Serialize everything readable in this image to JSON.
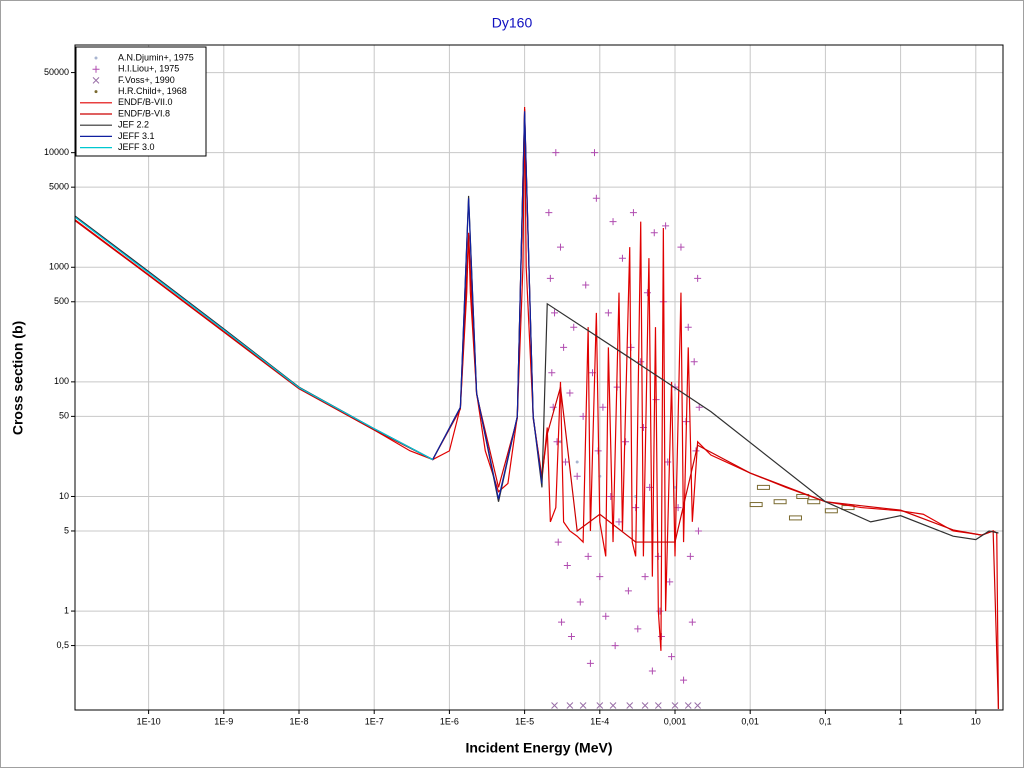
{
  "chart_data": {
    "type": "scatter",
    "title": "Dy160",
    "xlabel": "Incident Energy (MeV)",
    "ylabel": "Cross section (b)",
    "xscale": "log",
    "yscale": "log",
    "grid": true,
    "legend": "upper left",
    "xlim": [
      1.05e-11,
      23
    ],
    "ylim": [
      0.137,
      87000
    ],
    "xticks": [
      {
        "value": 1e-10,
        "label": "1E-10"
      },
      {
        "value": 1e-09,
        "label": "1E-9"
      },
      {
        "value": 1e-08,
        "label": "1E-8"
      },
      {
        "value": 1e-07,
        "label": "1E-7"
      },
      {
        "value": 1e-06,
        "label": "1E-6"
      },
      {
        "value": 1e-05,
        "label": "1E-5"
      },
      {
        "value": 0.0001,
        "label": "1E-4"
      },
      {
        "value": 0.001,
        "label": "0,001"
      },
      {
        "value": 0.01,
        "label": "0,01"
      },
      {
        "value": 0.1,
        "label": "0,1"
      },
      1,
      10
    ],
    "yticks": [
      {
        "value": 0.5,
        "label": "0,5"
      },
      1,
      5,
      10,
      50,
      100,
      500,
      1000,
      5000,
      10000,
      50000
    ],
    "series": [
      {
        "name": "A.N.Djumin+, 1975",
        "style": "dot",
        "color": "#a8b4d0",
        "x": [
          3e-05,
          5e-05,
          0.0001,
          0.0003,
          0.001
        ],
        "values": [
          30,
          20,
          15,
          10,
          12
        ]
      },
      {
        "name": "H.I.Liou+, 1975",
        "style": "plus",
        "color": "#b04cb0",
        "x": [
          2.1e-05,
          2.2e-05,
          2.3e-05,
          2.4e-05,
          2.5e-05,
          2.6e-05,
          2.7e-05,
          2.8e-05,
          3e-05,
          3.1e-05,
          3.3e-05,
          3.5e-05,
          3.7e-05,
          4e-05,
          4.2e-05,
          4.5e-05,
          5e-05,
          5.5e-05,
          6e-05,
          6.5e-05,
          7e-05,
          7.5e-05,
          8e-05,
          8.5e-05,
          9e-05,
          9.5e-05,
          0.0001,
          0.00011,
          0.00012,
          0.00013,
          0.00014,
          0.00015,
          0.00016,
          0.00017,
          0.00018,
          0.0002,
          0.00022,
          0.00024,
          0.00026,
          0.00028,
          0.0003,
          0.00032,
          0.00035,
          0.00038,
          0.0004,
          0.00043,
          0.00046,
          0.0005,
          0.00053,
          0.00056,
          0.0006,
          0.00063,
          0.00066,
          0.0007,
          0.00075,
          0.0008,
          0.00085,
          0.0009,
          0.001,
          0.0011,
          0.0012,
          0.0013,
          0.0014,
          0.0015,
          0.0016,
          0.0017,
          0.0018,
          0.0019,
          0.002,
          0.00205,
          0.0021
        ],
        "values": [
          3000,
          800,
          120,
          60,
          400,
          10000,
          30,
          4,
          1500,
          0.8,
          200,
          20,
          2.5,
          80,
          0.6,
          300,
          15,
          1.2,
          50,
          700,
          3,
          0.35,
          120,
          10000,
          4000,
          25,
          2,
          60,
          0.9,
          400,
          10,
          2500,
          0.5,
          90,
          6,
          1200,
          30,
          1.5,
          200,
          3000,
          8,
          0.7,
          150,
          40,
          2,
          600,
          12,
          0.3,
          2000,
          70,
          3,
          1,
          0.6,
          500,
          2300,
          20,
          1.8,
          0.4,
          90,
          8,
          1500,
          0.25,
          45,
          300,
          3,
          0.8,
          150,
          25,
          800,
          5,
          60
        ]
      },
      {
        "name": "F.Voss+, 1990",
        "style": "cross",
        "color": "#9a70a8",
        "x": [
          2.5e-05,
          4e-05,
          6e-05,
          0.0001,
          0.00015,
          0.00025,
          0.0004,
          0.0006,
          0.001,
          0.0015,
          0.002
        ],
        "values": [
          0.15,
          0.15,
          0.15,
          0.15,
          0.15,
          0.15,
          0.15,
          0.15,
          0.15,
          0.15,
          0.15
        ]
      },
      {
        "name": "H.R.Child+, 1968",
        "style": "square",
        "color": "#7a6a30",
        "x": [
          0.012,
          0.015,
          0.025,
          0.04,
          0.05,
          0.07,
          0.12,
          0.2
        ],
        "values": [
          8.5,
          12,
          9,
          6.5,
          10,
          9,
          7.5,
          8
        ]
      },
      {
        "name": "ENDF/B-VII.0",
        "style": "line",
        "color": "#e00000",
        "x": [
          1.05e-11,
          1e-10,
          1e-09,
          1e-08,
          1e-07,
          3e-07,
          6e-07,
          1e-06,
          1.4e-06,
          1.7e-06,
          1.8e-06,
          1.9e-06,
          2.3e-06,
          3e-06,
          4.5e-06,
          6e-06,
          8e-06,
          9.5e-06,
          1e-05,
          1.05e-05,
          1.3e-05,
          1.7e-05,
          2e-05,
          2.2e-05,
          2.6e-05,
          3e-05,
          3.3e-05,
          4e-05,
          5e-05,
          6e-05,
          7e-05,
          7.5e-05,
          9e-05,
          0.0001,
          0.00012,
          0.00013,
          0.00015,
          0.00018,
          0.0002,
          0.00025,
          0.00027,
          0.0003,
          0.00035,
          0.00038,
          0.00045,
          0.0005,
          0.00055,
          0.0006,
          0.00065,
          0.0007,
          0.00075,
          0.0009,
          0.001,
          0.0012,
          0.0013,
          0.0015,
          0.0017,
          0.002,
          0.003,
          0.01,
          0.03,
          0.1,
          0.3,
          1,
          2,
          5,
          8,
          12,
          17,
          19,
          20
        ],
        "values": [
          2600,
          860,
          275,
          88,
          38,
          25,
          21,
          25,
          60,
          600,
          2000,
          600,
          80,
          25,
          11,
          13,
          50,
          1000,
          25000,
          1000,
          50,
          14,
          40,
          6,
          8,
          100,
          6,
          5,
          4.5,
          4,
          300,
          5,
          400,
          6,
          3,
          200,
          4,
          600,
          5,
          1500,
          4,
          3,
          2500,
          3,
          1200,
          2,
          300,
          1,
          0.45,
          2200,
          1,
          100,
          3,
          600,
          4,
          200,
          6,
          30,
          23,
          16,
          12,
          9,
          8,
          7.5,
          7,
          5,
          4.8,
          4.6,
          5,
          4.8,
          0.14
        ]
      },
      {
        "name": "ENDF/B-VI.8",
        "style": "line",
        "color": "#cc0000",
        "x": [
          1.05e-11,
          1e-10,
          1e-09,
          1e-08,
          1e-07,
          6e-07,
          1.4e-06,
          1.8e-06,
          2.3e-06,
          4.5e-06,
          8e-06,
          1e-05,
          1.3e-05,
          1.7e-05,
          2e-05,
          3e-05,
          5e-05,
          0.0001,
          0.0003,
          0.001,
          0.002,
          0.01,
          0.1,
          1,
          5,
          12,
          17,
          20
        ],
        "values": [
          2550,
          850,
          272,
          87,
          38,
          21,
          58,
          1900,
          78,
          12,
          48,
          24000,
          48,
          15,
          35,
          90,
          5,
          7,
          4,
          4,
          28,
          16,
          9,
          7.6,
          5.1,
          4.6,
          5,
          0.14
        ]
      },
      {
        "name": "JEF 2.2",
        "style": "line",
        "color": "#303030",
        "x": [
          1.05e-11,
          1e-10,
          1e-09,
          1e-08,
          1e-07,
          6e-07,
          1.4e-06,
          1.8e-06,
          2.3e-06,
          4.5e-06,
          8e-06,
          1e-05,
          1.3e-05,
          1.7e-05,
          2e-05,
          0.0003,
          0.003,
          0.1,
          0.4,
          1,
          5,
          10,
          15,
          20
        ],
        "values": [
          2800,
          920,
          290,
          90,
          39,
          21,
          60,
          4200,
          80,
          9,
          50,
          22000,
          50,
          12,
          480,
          150,
          55,
          9,
          6,
          6.8,
          4.5,
          4.2,
          5,
          4.8
        ]
      },
      {
        "name": "JEFF 3.1",
        "style": "line",
        "color": "#1020a0",
        "x": [
          1.05e-11,
          1e-10,
          1e-09,
          1e-08,
          1e-07,
          6e-07,
          1.4e-06,
          1.8e-06,
          2.3e-06,
          4.5e-06,
          8e-06,
          1e-05,
          1.3e-05,
          1.7e-05
        ],
        "values": [
          2750,
          900,
          285,
          89,
          39,
          21,
          60,
          4000,
          80,
          9.5,
          50,
          23000,
          50,
          13
        ]
      },
      {
        "name": "JEFF 3.0",
        "style": "line",
        "color": "#00c8d0",
        "x": [
          1.05e-11,
          1e-10,
          1e-09,
          1e-08,
          1e-07,
          6e-07
        ],
        "values": [
          2740,
          895,
          284,
          89,
          39,
          21
        ]
      }
    ]
  }
}
